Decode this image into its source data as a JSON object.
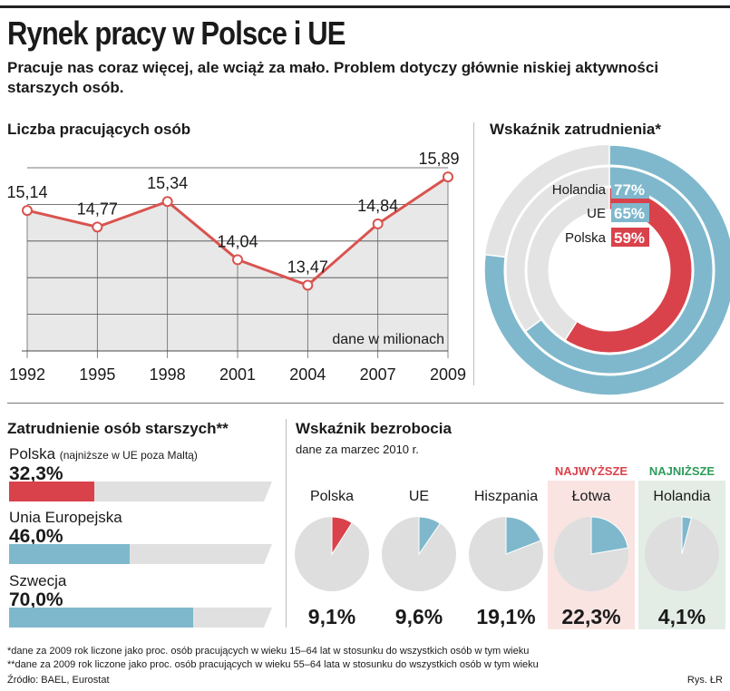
{
  "header": {
    "title": "Rynek pracy w Polsce i UE",
    "subtitle": "Pracuje nas coraz więcej, ale wciąż za mało. Problem dotyczy głównie niskiej aktywności starszych osób."
  },
  "colors": {
    "red": "#d9424b",
    "blue": "#7fb8cc",
    "grey": "#dedede",
    "line_red": "#d9534f",
    "green": "#2e9c5b"
  },
  "chart_data": [
    {
      "id": "employed",
      "type": "line",
      "title": "Liczba pracujących osób",
      "annotation": "dane w milionach",
      "categories": [
        "1992",
        "1995",
        "1998",
        "2001",
        "2004",
        "2007",
        "2009"
      ],
      "values": [
        15.14,
        14.77,
        15.34,
        14.04,
        13.47,
        14.84,
        15.89
      ],
      "value_labels": [
        "15,14",
        "14,77",
        "15,34",
        "14,04",
        "13,47",
        "14,84",
        "15,89"
      ],
      "ylim": [
        12.0,
        16.5
      ]
    },
    {
      "id": "employment-rate",
      "type": "pie",
      "title": "Wskaźnik zatrudnienia*",
      "series": [
        {
          "name": "Holandia",
          "value": 77,
          "label": "77%"
        },
        {
          "name": "UE",
          "value": 65,
          "label": "65%"
        },
        {
          "name": "Polska",
          "value": 59,
          "label": "59%"
        }
      ]
    },
    {
      "id": "older-employment",
      "type": "bar",
      "title": "Zatrudnienie osób starszych**",
      "categories": [
        "Polska",
        "Unia Europejska",
        "Szwecja"
      ],
      "notes": [
        "(najniższe w UE poza Maltą)",
        "",
        ""
      ],
      "values": [
        32.3,
        46.0,
        70.0
      ],
      "value_labels": [
        "32,3%",
        "46,0%",
        "70,0%"
      ],
      "xlim": [
        0,
        100
      ]
    },
    {
      "id": "unemployment",
      "type": "pie",
      "title": "Wskaźnik bezrobocia",
      "subtitle": "dane za marzec 2010 r.",
      "categories": [
        "Polska",
        "UE",
        "Hiszpania",
        "Łotwa",
        "Holandia"
      ],
      "values": [
        9.1,
        9.6,
        19.1,
        22.3,
        4.1
      ],
      "value_labels": [
        "9,1%",
        "9,6%",
        "19,1%",
        "22,3%",
        "4,1%"
      ],
      "highlight_high": "NAJWYŻSZE",
      "highlight_low": "NAJNIŻSZE"
    }
  ],
  "footer": {
    "note1": "*dane za 2009 rok liczone jako proc. osób pracujących w wieku 15–64 lat w stosunku do wszystkich osób w tym wieku",
    "note2": "**dane za 2009 rok liczone jako proc. osób pracujących w wieku 55–64 lata w stosunku do wszystkich osób w tym wieku",
    "source": "Źródło: BAEL, Eurostat",
    "credit": "Rys. ŁR"
  }
}
